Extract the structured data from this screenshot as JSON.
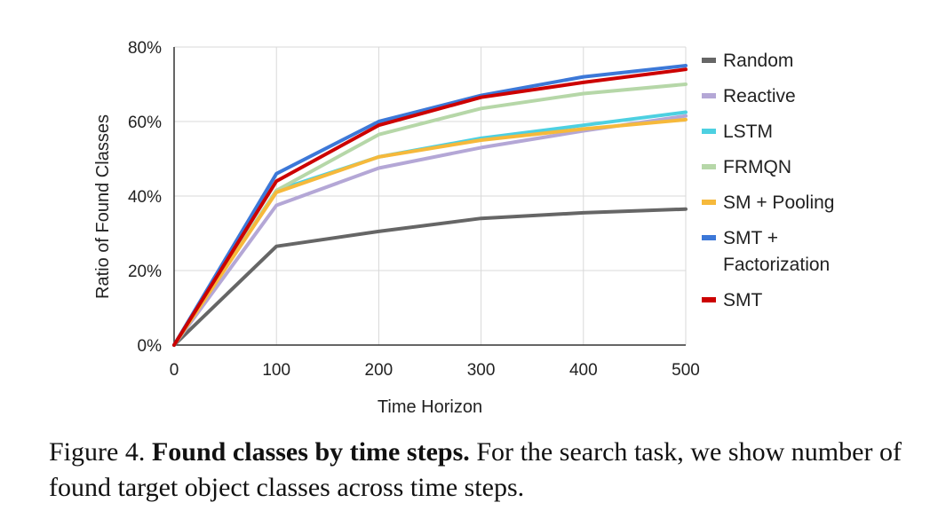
{
  "chart_data": {
    "type": "line",
    "xlabel": "Time Horizon",
    "ylabel": "Ratio of Found Classes",
    "x": [
      0,
      100,
      200,
      300,
      400,
      500
    ],
    "x_tick_labels": [
      "0",
      "100",
      "200",
      "300",
      "400",
      "500"
    ],
    "ylim": [
      0,
      80
    ],
    "y_tick_labels": [
      "0%",
      "20%",
      "40%",
      "60%",
      "80%"
    ],
    "grid": true,
    "legend_position": "right",
    "series": [
      {
        "name": "Random",
        "name_lines": [
          "Random"
        ],
        "color": "#666666",
        "values": [
          0,
          26.5,
          30.5,
          34,
          35.5,
          36.5
        ]
      },
      {
        "name": "Reactive",
        "name_lines": [
          "Reactive"
        ],
        "color": "#b4a7d6",
        "values": [
          0,
          37.5,
          47.5,
          53,
          57.5,
          61.5
        ]
      },
      {
        "name": "LSTM",
        "name_lines": [
          "LSTM"
        ],
        "color": "#4dd0e1",
        "values": [
          0,
          41.5,
          50.5,
          55.5,
          59,
          62.5
        ]
      },
      {
        "name": "FRMQN",
        "name_lines": [
          "FRMQN"
        ],
        "color": "#b6d7a8",
        "values": [
          0,
          41.5,
          56.5,
          63.5,
          67.5,
          70
        ]
      },
      {
        "name": "SM + Pooling",
        "name_lines": [
          "SM + Pooling"
        ],
        "color": "#f6b93b",
        "values": [
          0,
          41,
          50.5,
          55,
          58,
          60.5
        ]
      },
      {
        "name": "SMT + Factorization",
        "name_lines": [
          "SMT +",
          "Factorization"
        ],
        "color": "#3c78d8",
        "values": [
          0,
          46,
          60,
          67,
          72,
          75
        ]
      },
      {
        "name": "SMT",
        "name_lines": [
          "SMT"
        ],
        "color": "#cc0000",
        "values": [
          0,
          44,
          59,
          66.5,
          70.5,
          74
        ]
      }
    ]
  },
  "caption": {
    "label": "Figure 4. ",
    "bold": "Found classes by time steps.",
    "text": " For the search task, we show number of found target object classes across time steps."
  }
}
